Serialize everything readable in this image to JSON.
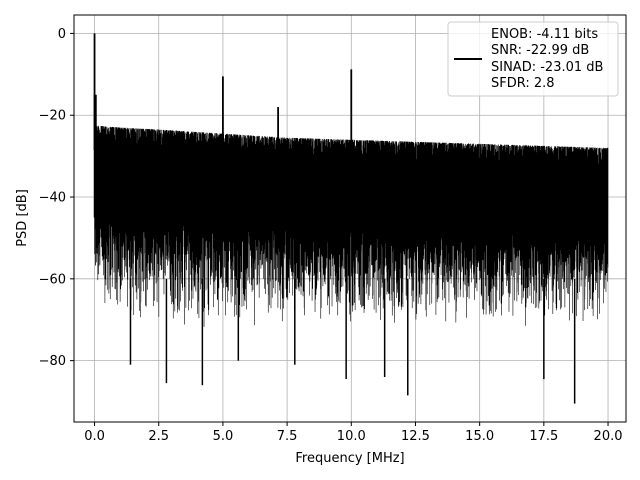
{
  "chart_data": {
    "type": "line",
    "title": "",
    "xlabel": "Frequency [MHz]",
    "ylabel": "PSD [dB]",
    "xlim": [
      -0.8,
      20.7
    ],
    "ylim": [
      -95,
      4.5
    ],
    "grid": true,
    "xticks": [
      0.0,
      2.5,
      5.0,
      7.5,
      10.0,
      12.5,
      15.0,
      17.5,
      20.0
    ],
    "xtick_labels": [
      "0.0",
      "2.5",
      "5.0",
      "7.5",
      "10.0",
      "12.5",
      "15.0",
      "17.5",
      "20.0"
    ],
    "yticks": [
      0,
      -20,
      -40,
      -60,
      -80
    ],
    "ytick_labels": [
      "0",
      "−20",
      "−40",
      "−60",
      "−80"
    ],
    "legend": {
      "placement": "upper-right",
      "entries": [
        "ENOB: -4.11 bits",
        "SNR: -22.99 dB",
        "SINAD: -23.01 dB",
        "SFDR: 2.8"
      ]
    },
    "series": [
      {
        "color": "#000000",
        "noise_band": {
          "x": [
            0.0,
            1.0,
            2.5,
            5.0,
            7.5,
            10.0,
            12.5,
            15.0,
            17.5,
            20.0
          ],
          "upper": [
            -22.5,
            -23.0,
            -23.5,
            -24.5,
            -25.5,
            -26.0,
            -26.5,
            -27.0,
            -27.5,
            -28.0
          ],
          "lower": [
            -65,
            -68,
            -70,
            -70,
            -70,
            -70,
            -70,
            -70,
            -70,
            -70
          ]
        },
        "peaks": [
          {
            "x": 0.0,
            "y": 0.0
          },
          {
            "x": 5.0,
            "y": -10.5
          },
          {
            "x": 7.15,
            "y": -18.0
          },
          {
            "x": 10.0,
            "y": -8.8
          },
          {
            "x": 0.05,
            "y": -15.0
          }
        ],
        "dips": [
          {
            "x": 1.4,
            "y": -81
          },
          {
            "x": 2.8,
            "y": -85.5
          },
          {
            "x": 4.2,
            "y": -86
          },
          {
            "x": 5.6,
            "y": -80
          },
          {
            "x": 7.8,
            "y": -81
          },
          {
            "x": 9.8,
            "y": -84.5
          },
          {
            "x": 11.3,
            "y": -84
          },
          {
            "x": 12.2,
            "y": -88.5
          },
          {
            "x": 18.7,
            "y": -90.5
          },
          {
            "x": 17.5,
            "y": -84.5
          }
        ]
      }
    ]
  }
}
